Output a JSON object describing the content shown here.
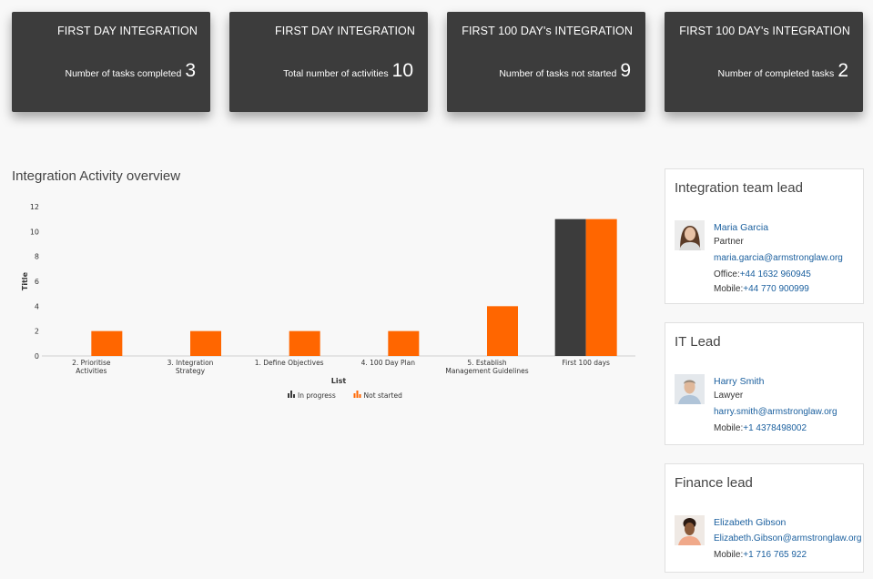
{
  "kpis": [
    {
      "title": "FIRST DAY INTEGRATION",
      "label": "Number of tasks completed",
      "value": "3"
    },
    {
      "title": "FIRST DAY INTEGRATION",
      "label": "Total number of activities",
      "value": "10"
    },
    {
      "title": "FIRST 100 DAY's INTEGRATION",
      "label": "Number of tasks not started",
      "value": "9"
    },
    {
      "title": "FIRST 100 DAY's INTEGRATION",
      "label": "Number of completed tasks",
      "value": "2"
    }
  ],
  "overview": {
    "title": "Integration Activity overview"
  },
  "chart_data": {
    "type": "bar",
    "categories": [
      "2. Prioritise Activities",
      "3. Integration Strategy",
      "1. Define Objectives",
      "4. 100 Day Plan",
      "5. Establish Management Guidelines",
      "First 100 days"
    ],
    "series": [
      {
        "name": "In progress",
        "values": [
          0,
          0,
          0,
          0,
          0,
          11
        ],
        "color": "#3c3c3c"
      },
      {
        "name": "Not started",
        "values": [
          2,
          2,
          2,
          2,
          4,
          11
        ],
        "color": "#ff6600"
      }
    ],
    "xlabel": "List",
    "ylabel": "Title",
    "ylim": [
      0,
      12
    ],
    "yticks": [
      "0",
      "2",
      "4",
      "6",
      "8",
      "10",
      "12"
    ],
    "legend": "bottom-center"
  },
  "cards": {
    "integration": {
      "title": "Integration team lead",
      "name": "Maria Garcia",
      "role": "Partner",
      "email": "maria.garcia@armstronglaw.org",
      "office_label": "Office:",
      "office": "+44 1632 960945",
      "mobile_label": "Mobile:",
      "mobile": "+44 770 900999"
    },
    "it": {
      "title": "IT Lead",
      "name": "Harry Smith",
      "role": "Lawyer",
      "email": "harry.smith@armstronglaw.org",
      "mobile_label": "Mobile:",
      "mobile": "+1 4378498002"
    },
    "finance": {
      "title": "Finance lead",
      "name": "Elizabeth Gibson",
      "email": "Elizabeth.Gibson@armstronglaw.org",
      "mobile_label": "Mobile:",
      "mobile": "+1 716 765 922"
    }
  }
}
